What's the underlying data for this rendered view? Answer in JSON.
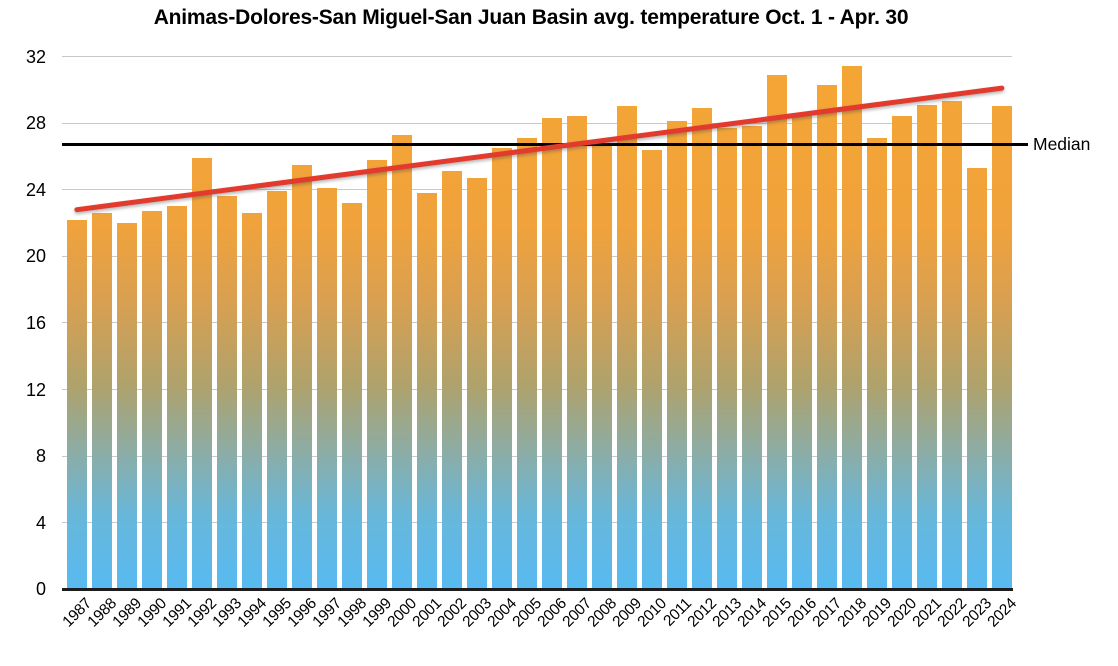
{
  "chart_data": {
    "type": "bar",
    "title": "Animas-Dolores-San Miguel-San Juan Basin avg. temperature Oct. 1 - Apr. 30",
    "categories": [
      "1987",
      "1988",
      "1989",
      "1990",
      "1991",
      "1992",
      "1993",
      "1994",
      "1995",
      "1996",
      "1997",
      "1998",
      "1999",
      "2000",
      "2001",
      "2002",
      "2003",
      "2004",
      "2005",
      "2006",
      "2007",
      "2008",
      "2009",
      "2010",
      "2011",
      "2012",
      "2013",
      "2014",
      "2015",
      "2016",
      "2017",
      "2018",
      "2019",
      "2020",
      "2021",
      "2022",
      "2023",
      "2024"
    ],
    "values": [
      22.2,
      22.6,
      22.0,
      22.7,
      23.0,
      25.9,
      23.6,
      22.6,
      23.9,
      25.5,
      24.1,
      23.2,
      25.8,
      27.3,
      23.8,
      25.1,
      24.7,
      26.5,
      27.1,
      28.3,
      28.4,
      26.6,
      29.0,
      26.4,
      28.1,
      28.9,
      27.7,
      27.8,
      30.9,
      28.6,
      30.3,
      31.4,
      27.1,
      28.4,
      29.1,
      29.3,
      25.3,
      29.0
    ],
    "xlabel": "",
    "ylabel": "",
    "ylim": [
      0,
      32
    ],
    "yticks": [
      0,
      4,
      8,
      12,
      16,
      20,
      24,
      28,
      32
    ],
    "grid": true,
    "legend": "none",
    "median_line": {
      "value": 26.7,
      "label": "Median",
      "color": "#000000"
    },
    "trend_line": {
      "start_category": "1987",
      "end_category": "2024",
      "start_value": 22.8,
      "end_value": 30.1,
      "color": "#e23b2e"
    },
    "bar_gradient_top_to_bottom": [
      "#f5a634",
      "#f0a23c",
      "#d7a052",
      "#afa26c",
      "#8aada8",
      "#68b7da",
      "#57baf1"
    ],
    "gridline_color": "#c9c9c9",
    "axis_color": "#1c1c1c",
    "label_color": "#000000"
  }
}
